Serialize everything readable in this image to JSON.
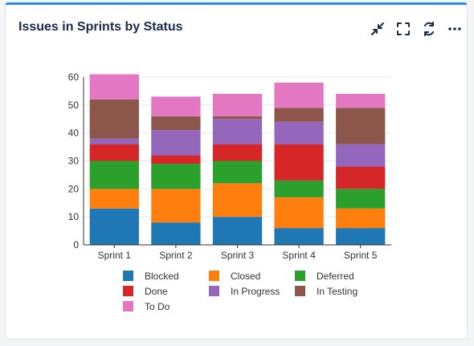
{
  "widget": {
    "title": "Issues in Sprints by Status",
    "toolbar": {
      "collapse_icon": "collapse-arrows-icon",
      "fullscreen_icon": "fullscreen-icon",
      "refresh_icon": "refresh-icon",
      "more_icon": "more-dots-icon"
    }
  },
  "chart_data": {
    "type": "bar",
    "stacked": true,
    "categories": [
      "Sprint 1",
      "Sprint 2",
      "Sprint 3",
      "Sprint 4",
      "Sprint 5"
    ],
    "ylim": [
      0,
      60
    ],
    "yticks": [
      0,
      10,
      20,
      30,
      40,
      50,
      60
    ],
    "grid": true,
    "legend_position": "bottom",
    "series": [
      {
        "name": "Blocked",
        "color": "#1f77b4",
        "values": [
          13,
          8,
          10,
          6,
          6
        ]
      },
      {
        "name": "Closed",
        "color": "#ff7f0e",
        "values": [
          7,
          12,
          12,
          11,
          7
        ]
      },
      {
        "name": "Deferred",
        "color": "#2ca02c",
        "values": [
          10,
          9,
          8,
          6,
          7
        ]
      },
      {
        "name": "Done",
        "color": "#d62728",
        "values": [
          6,
          3,
          6,
          13,
          8
        ]
      },
      {
        "name": "In Progress",
        "color": "#9467bd",
        "values": [
          2,
          9,
          9,
          8,
          8
        ]
      },
      {
        "name": "In Testing",
        "color": "#8c564b",
        "values": [
          14,
          5,
          1,
          5,
          13
        ]
      },
      {
        "name": "To Do",
        "color": "#e377c2",
        "values": [
          9,
          7,
          8,
          9,
          5
        ]
      }
    ]
  }
}
